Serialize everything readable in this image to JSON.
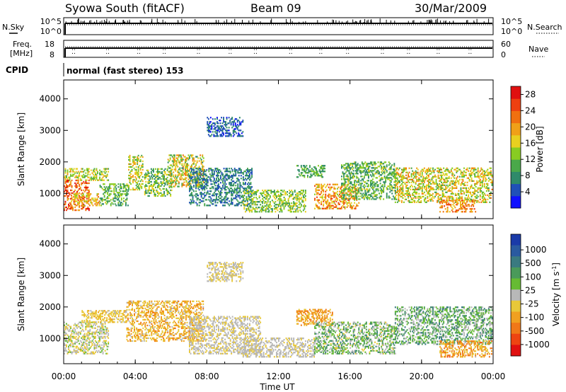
{
  "header": {
    "station": "Syowa South (fitACF)",
    "beam": "Beam 09",
    "date": "30/Mar/2009"
  },
  "status_panels": {
    "nsky": {
      "label": "N.Sky",
      "ticks": [
        "10^5",
        "10^0"
      ],
      "right_label": "N.Search",
      "right_ticks": [
        "10^5",
        "10^0"
      ]
    },
    "freq": {
      "label_line1": "Freq.",
      "label_line2": "[MHz]",
      "ticks": [
        "18",
        "8"
      ],
      "right_label": "Nave",
      "right_ticks": [
        "60",
        "0"
      ]
    },
    "cpid": {
      "label": "CPID",
      "value": "normal (fast stereo) 153"
    }
  },
  "colors": {
    "power_scale": [
      "#1010ff",
      "#2050b8",
      "#2f8a6a",
      "#4aa84a",
      "#88cc22",
      "#e8d020",
      "#f0a018",
      "#f07010",
      "#ee4010",
      "#e01010"
    ],
    "velocity_scale": [
      "#1a3aa8",
      "#2a5aa0",
      "#3a7a80",
      "#4a9a5a",
      "#66bb33",
      "#b8b8b8",
      "#e8c838",
      "#f0a020",
      "#f07818",
      "#ee4412",
      "#e01010"
    ]
  },
  "chart_data": [
    {
      "type": "heatmap",
      "title": "",
      "xlabel": "Time UT",
      "ylabel": "Slant Range [km]",
      "xlim": [
        "00:00",
        "00:00"
      ],
      "ylim": [
        200,
        4600
      ],
      "x_ticks": [
        "00:00",
        "04:00",
        "08:00",
        "12:00",
        "16:00",
        "20:00",
        "00:00"
      ],
      "y_ticks": [
        1000,
        2000,
        3000,
        4000
      ],
      "colorbar_label": "Power [dB]",
      "colorbar_ticks": [
        4,
        8,
        12,
        16,
        20,
        24,
        28
      ],
      "colorbar_range": [
        0,
        30
      ],
      "value_name": "power",
      "regions": [
        {
          "t": [
            0.0,
            1.4
          ],
          "r": [
            450,
            1400
          ],
          "v": [
            18,
            30
          ]
        },
        {
          "t": [
            0.4,
            2.0
          ],
          "r": [
            600,
            1000
          ],
          "v": [
            14,
            22
          ]
        },
        {
          "t": [
            0.0,
            2.5
          ],
          "r": [
            1400,
            1800
          ],
          "v": [
            10,
            20
          ]
        },
        {
          "t": [
            2.0,
            3.6
          ],
          "r": [
            600,
            1300
          ],
          "v": [
            6,
            16
          ]
        },
        {
          "t": [
            3.6,
            4.4
          ],
          "r": [
            1100,
            2200
          ],
          "v": [
            10,
            20
          ]
        },
        {
          "t": [
            4.5,
            6.0
          ],
          "r": [
            900,
            1800
          ],
          "v": [
            6,
            18
          ]
        },
        {
          "t": [
            5.8,
            7.8
          ],
          "r": [
            1200,
            2200
          ],
          "v": [
            8,
            22
          ]
        },
        {
          "t": [
            7.0,
            10.5
          ],
          "r": [
            600,
            1800
          ],
          "v": [
            4,
            10
          ]
        },
        {
          "t": [
            8.0,
            10.0
          ],
          "r": [
            2800,
            3400
          ],
          "v": [
            2,
            8
          ]
        },
        {
          "t": [
            10.0,
            13.5
          ],
          "r": [
            400,
            1100
          ],
          "v": [
            8,
            18
          ]
        },
        {
          "t": [
            13.0,
            14.6
          ],
          "r": [
            1500,
            1900
          ],
          "v": [
            6,
            14
          ]
        },
        {
          "t": [
            14.0,
            16.5
          ],
          "r": [
            500,
            1300
          ],
          "v": [
            14,
            26
          ]
        },
        {
          "t": [
            15.5,
            18.5
          ],
          "r": [
            800,
            2000
          ],
          "v": [
            6,
            16
          ]
        },
        {
          "t": [
            18.5,
            23.9
          ],
          "r": [
            700,
            1800
          ],
          "v": [
            10,
            22
          ]
        },
        {
          "t": [
            21.0,
            23.0
          ],
          "r": [
            400,
            800
          ],
          "v": [
            16,
            26
          ]
        }
      ]
    },
    {
      "type": "heatmap",
      "title": "",
      "xlabel": "Time UT",
      "ylabel": "Slant Range [km]",
      "xlim": [
        "00:00",
        "00:00"
      ],
      "ylim": [
        200,
        4600
      ],
      "x_ticks": [
        "00:00",
        "04:00",
        "08:00",
        "12:00",
        "16:00",
        "20:00",
        "00:00"
      ],
      "y_ticks": [
        1000,
        2000,
        3000,
        4000
      ],
      "colorbar_label": "Velocity [m s^-1]",
      "colorbar_ticks": [
        1000,
        500,
        100,
        25,
        -25,
        -100,
        -500,
        -1000
      ],
      "colorbar_range": [
        -1200,
        1200
      ],
      "value_name": "velocity",
      "regions": [
        {
          "t": [
            0.0,
            2.5
          ],
          "r": [
            500,
            1500
          ],
          "v": [
            -300,
            200
          ]
        },
        {
          "t": [
            1.0,
            3.5
          ],
          "r": [
            1500,
            1900
          ],
          "v": [
            -400,
            -50
          ]
        },
        {
          "t": [
            3.5,
            7.8
          ],
          "r": [
            900,
            2200
          ],
          "v": [
            -600,
            -50
          ]
        },
        {
          "t": [
            7.0,
            11.0
          ],
          "r": [
            500,
            1700
          ],
          "v": [
            -200,
            50
          ]
        },
        {
          "t": [
            8.0,
            10.0
          ],
          "r": [
            2800,
            3400
          ],
          "v": [
            -200,
            0
          ]
        },
        {
          "t": [
            10.0,
            14.0
          ],
          "r": [
            400,
            1000
          ],
          "v": [
            -150,
            30
          ]
        },
        {
          "t": [
            13.0,
            15.0
          ],
          "r": [
            1400,
            1900
          ],
          "v": [
            -700,
            -200
          ]
        },
        {
          "t": [
            14.0,
            18.5
          ],
          "r": [
            500,
            1500
          ],
          "v": [
            -200,
            600
          ]
        },
        {
          "t": [
            18.5,
            23.9
          ],
          "r": [
            800,
            2000
          ],
          "v": [
            -100,
            700
          ]
        },
        {
          "t": [
            21.0,
            23.9
          ],
          "r": [
            400,
            900
          ],
          "v": [
            -800,
            -100
          ]
        }
      ]
    }
  ]
}
